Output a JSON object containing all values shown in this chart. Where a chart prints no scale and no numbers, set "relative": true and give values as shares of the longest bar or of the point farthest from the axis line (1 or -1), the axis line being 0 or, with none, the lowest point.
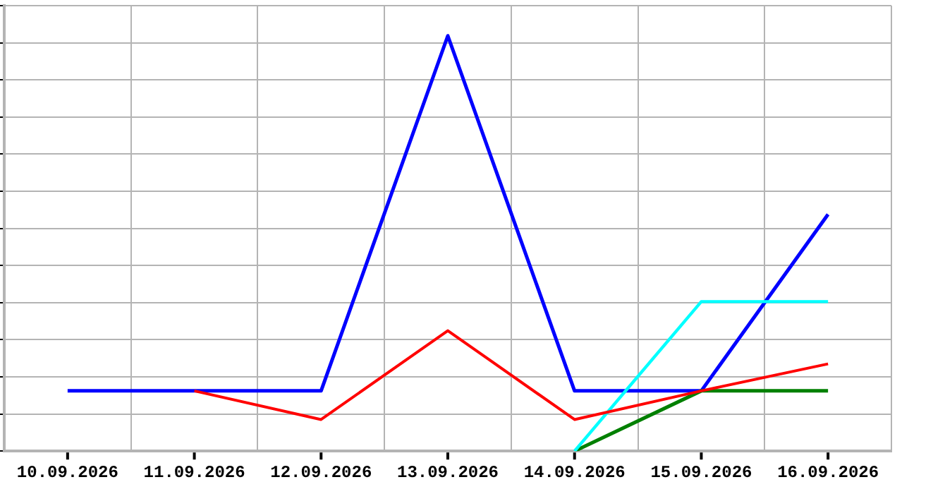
{
  "chart_data": {
    "type": "line",
    "relative": true,
    "grid": true,
    "legend": false,
    "marker": "none",
    "line_style": "solid",
    "categories": [
      "10.09.2026",
      "11.09.2026",
      "12.09.2026",
      "13.09.2026",
      "14.09.2026",
      "15.09.2026",
      "16.09.2026"
    ],
    "series": [
      {
        "color": "#ff0000",
        "values": [
          null,
          0.145,
          0.076,
          0.29,
          0.076,
          0.145,
          0.21
        ]
      },
      {
        "color": "#00ffff",
        "values": [
          null,
          null,
          null,
          null,
          0,
          0.36,
          0.36
        ]
      },
      {
        "color": "#008000",
        "values": [
          null,
          null,
          null,
          null,
          0,
          0.145,
          0.145
        ]
      },
      {
        "color": "#0000ff",
        "values": [
          0.145,
          0.145,
          0.145,
          1,
          0.145,
          0.145,
          0.57
        ]
      }
    ]
  }
}
